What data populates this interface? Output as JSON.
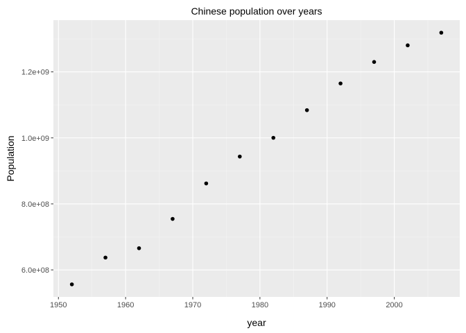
{
  "chart_data": {
    "type": "scatter",
    "title": "Chinese population over years",
    "xlabel": "year",
    "ylabel": "Population",
    "x": [
      1952,
      1957,
      1962,
      1967,
      1972,
      1977,
      1982,
      1987,
      1992,
      1997,
      2002,
      2007
    ],
    "y": [
      556263527,
      637408000,
      665770000,
      754550000,
      862030000,
      943455000,
      1000281000,
      1084035000,
      1164970000,
      1230075000,
      1280400000,
      1318683096
    ],
    "xlim": [
      1949.25,
      2009.75
    ],
    "ylim": [
      518142449,
      1356804174
    ],
    "x_ticks": [
      1950,
      1960,
      1970,
      1980,
      1990,
      2000
    ],
    "x_tick_labels": [
      "1950",
      "1960",
      "1970",
      "1980",
      "1990",
      "2000"
    ],
    "y_ticks": [
      600000000,
      800000000,
      1000000000,
      1200000000
    ],
    "y_tick_labels": [
      "6.0e+08",
      "8.0e+08",
      "1.0e+09",
      "1.2e+09"
    ],
    "grid": true,
    "colors": {
      "panel_background": "#ebebeb",
      "grid_major": "#ffffff",
      "grid_minor": "#f4f4f4",
      "point": "#000000",
      "tick_mark": "#333333"
    }
  }
}
